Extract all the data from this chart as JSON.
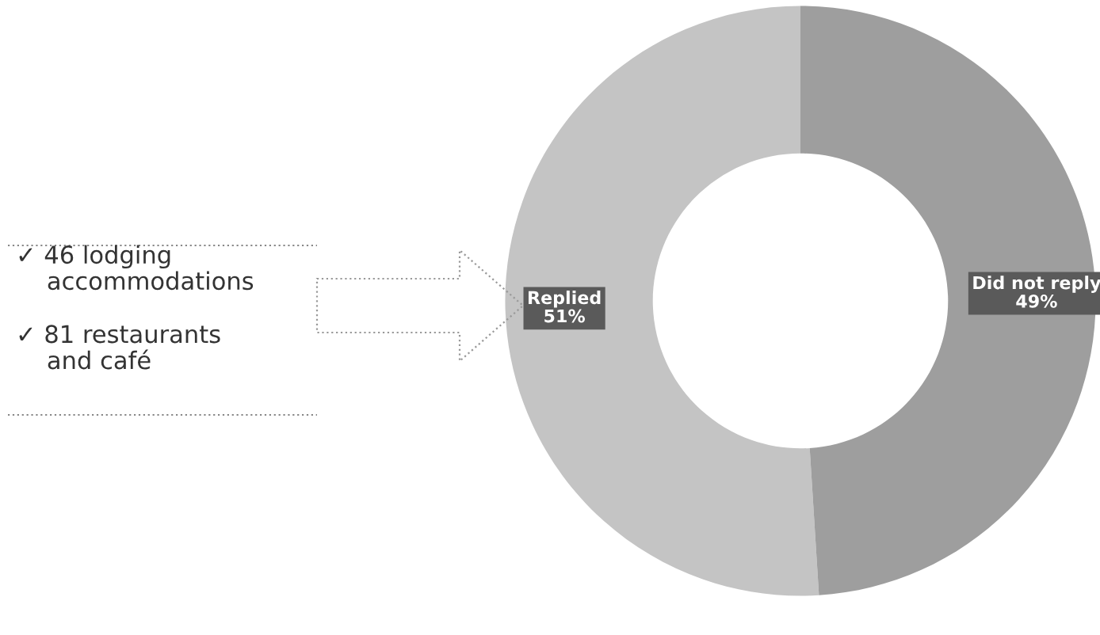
{
  "chart_data": {
    "type": "donut",
    "categories": [
      "Replied",
      "Did not reply"
    ],
    "values": [
      51,
      49
    ],
    "colors": [
      "#c4c4c4",
      "#9e9e9e"
    ],
    "value_labels": [
      "51%",
      "49%"
    ],
    "annotations": [
      "✓ 46 lodging\n    accommodations",
      "✓ 81 restaurants\n    and café"
    ]
  }
}
